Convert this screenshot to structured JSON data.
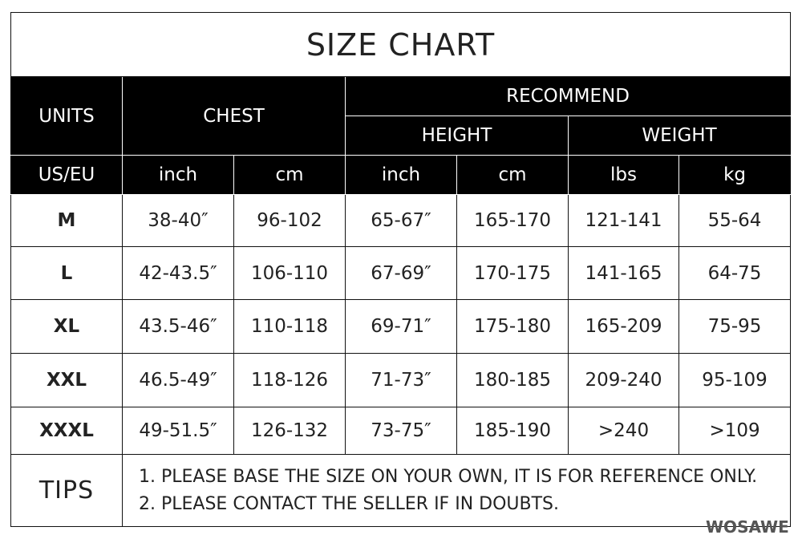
{
  "title": "SIZE CHART",
  "headers": {
    "units": "UNITS",
    "chest": "CHEST",
    "recommend": "RECOMMEND",
    "height": "HEIGHT",
    "weight": "WEIGHT",
    "sub": [
      "US/EU",
      "inch",
      "cm",
      "inch",
      "cm",
      "lbs",
      "kg"
    ]
  },
  "rows": [
    [
      "M",
      "38-40″",
      "96-102",
      "65-67″",
      "165-170",
      "121-141",
      "55-64"
    ],
    [
      "L",
      "42-43.5″",
      "106-110",
      "67-69″",
      "170-175",
      "141-165",
      "64-75"
    ],
    [
      "XL",
      "43.5-46″",
      "110-118",
      "69-71″",
      "175-180",
      "165-209",
      "75-95"
    ],
    [
      "XXL",
      "46.5-49″",
      "118-126",
      "71-73″",
      "180-185",
      "209-240",
      "95-109"
    ],
    [
      "XXXL",
      "49-51.5″",
      "126-132",
      "73-75″",
      "185-190",
      ">240",
      ">109"
    ]
  ],
  "tips": {
    "label": "TIPS",
    "lines": [
      "1. PLEASE BASE THE SIZE ON YOUR OWN, IT IS FOR REFERENCE ONLY.",
      "2. PLEASE CONTACT THE SELLER IF IN DOUBTS."
    ]
  },
  "brand": "WOSAWE"
}
